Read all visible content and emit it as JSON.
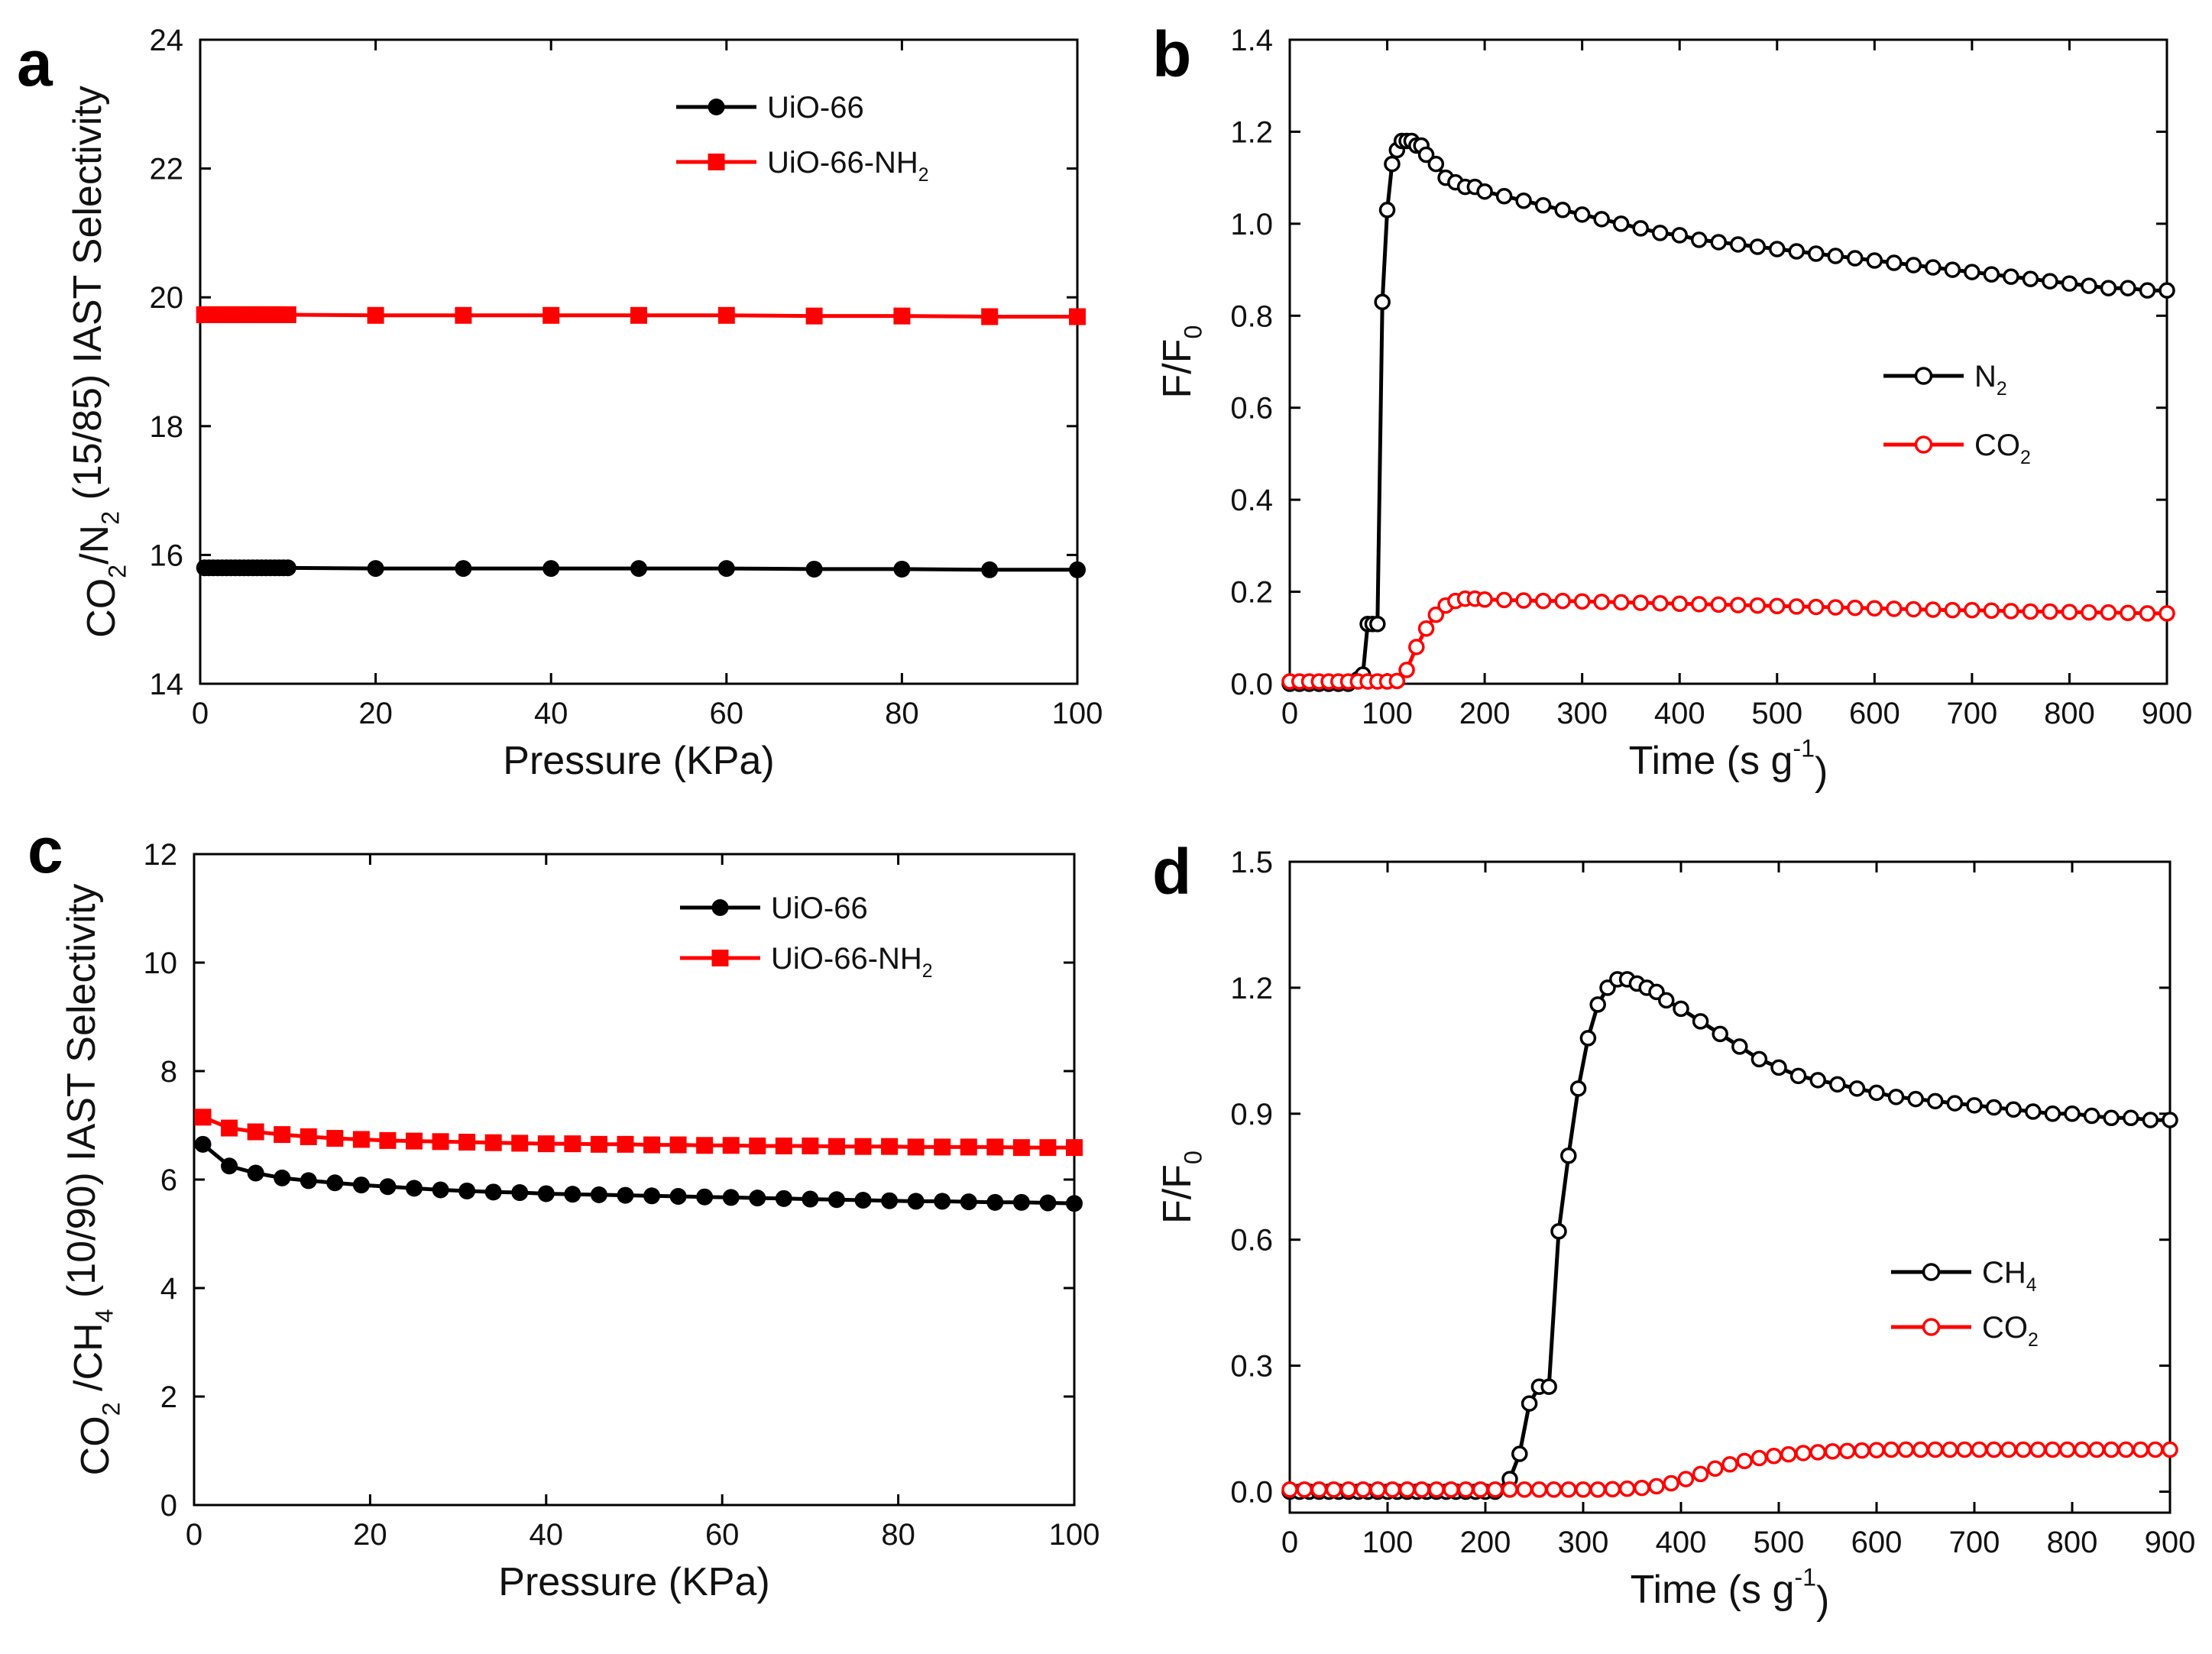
{
  "figure": {
    "panels": [
      "a",
      "b",
      "c",
      "d"
    ]
  },
  "chart_data": [
    {
      "panel": "a",
      "type": "line",
      "xlabel": "Pressure (KPa)",
      "ylabel": "CO2/N2 (15/85) IAST Selectivity",
      "ylabel_parts": [
        "CO",
        "2",
        "/N",
        "2",
        " (15/85) IAST Selectivity"
      ],
      "xlim": [
        0,
        100
      ],
      "ylim": [
        14,
        24
      ],
      "xticks": [
        0,
        20,
        40,
        60,
        80,
        100
      ],
      "yticks": [
        14,
        16,
        18,
        20,
        22,
        24
      ],
      "legend_position": "top-right",
      "series": [
        {
          "name": "UiO-66",
          "label_parts": [
            "UiO-66"
          ],
          "color": "#000000",
          "marker": "circle-filled",
          "x": [
            0.5,
            1,
            1.5,
            2,
            2.5,
            3,
            3.5,
            4,
            4.5,
            5,
            5.5,
            6,
            6.5,
            7,
            7.5,
            8,
            8.5,
            9,
            9.5,
            10,
            20,
            30,
            40,
            50,
            60,
            70,
            80,
            90,
            100
          ],
          "y": [
            15.8,
            15.8,
            15.8,
            15.8,
            15.8,
            15.8,
            15.8,
            15.8,
            15.8,
            15.8,
            15.8,
            15.8,
            15.8,
            15.8,
            15.8,
            15.8,
            15.8,
            15.8,
            15.8,
            15.8,
            15.79,
            15.79,
            15.79,
            15.79,
            15.79,
            15.78,
            15.78,
            15.77,
            15.77
          ]
        },
        {
          "name": "UiO-66-NH2",
          "label_parts": [
            "UiO-66-NH",
            "2"
          ],
          "color": "#ff0000",
          "marker": "square-filled",
          "x": [
            0.5,
            1,
            1.5,
            2,
            2.5,
            3,
            3.5,
            4,
            4.5,
            5,
            5.5,
            6,
            6.5,
            7,
            7.5,
            8,
            8.5,
            9,
            9.5,
            10,
            20,
            30,
            40,
            50,
            60,
            70,
            80,
            90,
            100
          ],
          "y": [
            19.73,
            19.73,
            19.73,
            19.73,
            19.73,
            19.73,
            19.73,
            19.73,
            19.73,
            19.73,
            19.73,
            19.73,
            19.73,
            19.73,
            19.73,
            19.73,
            19.73,
            19.73,
            19.73,
            19.73,
            19.72,
            19.72,
            19.72,
            19.72,
            19.72,
            19.71,
            19.71,
            19.7,
            19.7
          ]
        }
      ]
    },
    {
      "panel": "b",
      "type": "line",
      "xlabel": "Time (s g-1)",
      "xlabel_parts": [
        "Time (s g",
        "-1",
        ")"
      ],
      "ylabel": "F/F0",
      "ylabel_parts": [
        "F/F",
        "0"
      ],
      "xlim": [
        0,
        900
      ],
      "ylim": [
        0.0,
        1.4
      ],
      "xticks": [
        0,
        100,
        200,
        300,
        400,
        500,
        600,
        700,
        800,
        900
      ],
      "yticks": [
        0.0,
        0.2,
        0.4,
        0.6,
        0.8,
        1.0,
        1.2,
        1.4
      ],
      "legend_position": "center-right",
      "series": [
        {
          "name": "N2",
          "label_parts": [
            "N",
            "2"
          ],
          "color": "#000000",
          "marker": "circle-open",
          "x": [
            0,
            10,
            20,
            30,
            40,
            50,
            60,
            70,
            75,
            80,
            85,
            90,
            95,
            100,
            105,
            110,
            115,
            120,
            125,
            130,
            135,
            140,
            150,
            160,
            170,
            180,
            190,
            200,
            220,
            240,
            260,
            280,
            300,
            320,
            340,
            360,
            380,
            400,
            420,
            440,
            460,
            480,
            500,
            520,
            540,
            560,
            580,
            600,
            620,
            640,
            660,
            680,
            700,
            720,
            740,
            760,
            780,
            800,
            820,
            840,
            860,
            880,
            900
          ],
          "y": [
            0,
            0,
            0,
            0,
            0,
            0,
            0,
            0.01,
            0.02,
            0.13,
            0.13,
            0.13,
            0.83,
            1.03,
            1.13,
            1.16,
            1.18,
            1.18,
            1.18,
            1.17,
            1.17,
            1.15,
            1.13,
            1.1,
            1.09,
            1.08,
            1.08,
            1.07,
            1.06,
            1.05,
            1.04,
            1.03,
            1.02,
            1.01,
            1.0,
            0.99,
            0.98,
            0.975,
            0.965,
            0.96,
            0.955,
            0.95,
            0.945,
            0.94,
            0.935,
            0.93,
            0.925,
            0.92,
            0.915,
            0.91,
            0.905,
            0.9,
            0.895,
            0.89,
            0.885,
            0.88,
            0.875,
            0.87,
            0.865,
            0.86,
            0.86,
            0.855,
            0.855
          ]
        },
        {
          "name": "CO2",
          "label_parts": [
            "CO",
            "2"
          ],
          "color": "#ff0000",
          "marker": "circle-open",
          "x": [
            0,
            10,
            20,
            30,
            40,
            50,
            60,
            70,
            80,
            90,
            100,
            110,
            120,
            130,
            140,
            150,
            160,
            170,
            180,
            190,
            200,
            220,
            240,
            260,
            280,
            300,
            320,
            340,
            360,
            380,
            400,
            420,
            440,
            460,
            480,
            500,
            520,
            540,
            560,
            580,
            600,
            620,
            640,
            660,
            680,
            700,
            720,
            740,
            760,
            780,
            800,
            820,
            840,
            860,
            880,
            900
          ],
          "y": [
            0.005,
            0.005,
            0.005,
            0.005,
            0.005,
            0.005,
            0.005,
            0.005,
            0.005,
            0.005,
            0.005,
            0.006,
            0.03,
            0.08,
            0.12,
            0.15,
            0.17,
            0.18,
            0.185,
            0.185,
            0.183,
            0.182,
            0.181,
            0.18,
            0.18,
            0.179,
            0.178,
            0.177,
            0.176,
            0.175,
            0.174,
            0.173,
            0.172,
            0.171,
            0.17,
            0.169,
            0.168,
            0.167,
            0.166,
            0.165,
            0.164,
            0.163,
            0.162,
            0.161,
            0.16,
            0.16,
            0.159,
            0.158,
            0.157,
            0.157,
            0.156,
            0.155,
            0.155,
            0.154,
            0.153,
            0.153
          ]
        }
      ]
    },
    {
      "panel": "c",
      "type": "line",
      "xlabel": "Pressure (KPa)",
      "ylabel": "CO2 /CH4 (10/90) IAST Selectivity",
      "ylabel_parts": [
        "CO",
        "2",
        " /CH",
        "4",
        " (10/90) IAST Selectivity"
      ],
      "xlim": [
        0,
        100
      ],
      "ylim": [
        0,
        12
      ],
      "xticks": [
        0,
        20,
        40,
        60,
        80,
        100
      ],
      "yticks": [
        0,
        2,
        4,
        6,
        8,
        10,
        12
      ],
      "legend_position": "top-right",
      "series": [
        {
          "name": "UiO-66",
          "label_parts": [
            "UiO-66"
          ],
          "color": "#000000",
          "marker": "circle-filled",
          "x": [
            1,
            4,
            7,
            10,
            13,
            16,
            19,
            22,
            25,
            28,
            31,
            34,
            37,
            40,
            43,
            46,
            49,
            52,
            55,
            58,
            61,
            64,
            67,
            70,
            73,
            76,
            79,
            82,
            85,
            88,
            91,
            94,
            97,
            100
          ],
          "y": [
            6.65,
            6.25,
            6.12,
            6.03,
            5.98,
            5.94,
            5.9,
            5.87,
            5.84,
            5.81,
            5.79,
            5.77,
            5.76,
            5.74,
            5.73,
            5.72,
            5.71,
            5.7,
            5.69,
            5.68,
            5.67,
            5.66,
            5.65,
            5.64,
            5.63,
            5.62,
            5.61,
            5.6,
            5.6,
            5.59,
            5.58,
            5.58,
            5.57,
            5.56
          ]
        },
        {
          "name": "UiO-66-NH2",
          "label_parts": [
            "UiO-66-NH",
            "2"
          ],
          "color": "#ff0000",
          "marker": "square-filled",
          "x": [
            1,
            4,
            7,
            10,
            13,
            16,
            19,
            22,
            25,
            28,
            31,
            34,
            37,
            40,
            43,
            46,
            49,
            52,
            55,
            58,
            61,
            64,
            67,
            70,
            73,
            76,
            79,
            82,
            85,
            88,
            91,
            94,
            97,
            100
          ],
          "y": [
            7.15,
            6.95,
            6.88,
            6.83,
            6.79,
            6.76,
            6.74,
            6.72,
            6.71,
            6.7,
            6.69,
            6.68,
            6.67,
            6.66,
            6.66,
            6.65,
            6.65,
            6.64,
            6.64,
            6.63,
            6.63,
            6.62,
            6.62,
            6.62,
            6.61,
            6.61,
            6.61,
            6.6,
            6.6,
            6.6,
            6.6,
            6.59,
            6.59,
            6.59
          ]
        }
      ]
    },
    {
      "panel": "d",
      "type": "line",
      "xlabel": "Time (s g-1)",
      "xlabel_parts": [
        "Time (s g",
        "-1",
        ")"
      ],
      "ylabel": "F/F0",
      "ylabel_parts": [
        "F/F",
        "0"
      ],
      "xlim": [
        0,
        900
      ],
      "ylim": [
        -0.05,
        1.5
      ],
      "xticks": [
        0,
        100,
        200,
        300,
        400,
        500,
        600,
        700,
        800,
        900
      ],
      "yticks": [
        0.0,
        0.3,
        0.6,
        0.9,
        1.2,
        1.5
      ],
      "legend_position": "bottom-right",
      "series": [
        {
          "name": "CH4",
          "label_parts": [
            "CH",
            "4"
          ],
          "color": "#000000",
          "marker": "circle-open",
          "x": [
            0,
            10,
            20,
            30,
            40,
            50,
            60,
            70,
            80,
            90,
            100,
            110,
            120,
            130,
            140,
            150,
            160,
            170,
            180,
            190,
            200,
            210,
            225,
            235,
            245,
            255,
            265,
            275,
            285,
            295,
            305,
            315,
            325,
            335,
            345,
            355,
            365,
            375,
            385,
            400,
            420,
            440,
            460,
            480,
            500,
            520,
            540,
            560,
            580,
            600,
            620,
            640,
            660,
            680,
            700,
            720,
            740,
            760,
            780,
            800,
            820,
            840,
            860,
            880,
            900
          ],
          "y": [
            0,
            0,
            0,
            0,
            0,
            0,
            0,
            0,
            0,
            0,
            0,
            0,
            0,
            0,
            0,
            0,
            0,
            0,
            0,
            0,
            0,
            0,
            0.03,
            0.09,
            0.21,
            0.25,
            0.25,
            0.62,
            0.8,
            0.96,
            1.08,
            1.16,
            1.2,
            1.22,
            1.22,
            1.21,
            1.2,
            1.19,
            1.17,
            1.15,
            1.12,
            1.09,
            1.06,
            1.03,
            1.01,
            0.99,
            0.98,
            0.97,
            0.96,
            0.95,
            0.94,
            0.935,
            0.93,
            0.925,
            0.92,
            0.915,
            0.91,
            0.905,
            0.9,
            0.9,
            0.895,
            0.89,
            0.89,
            0.885,
            0.885
          ]
        },
        {
          "name": "CO2",
          "label_parts": [
            "CO",
            "2"
          ],
          "color": "#ff0000",
          "marker": "circle-open",
          "x": [
            0,
            15,
            30,
            45,
            60,
            75,
            90,
            105,
            120,
            135,
            150,
            165,
            180,
            195,
            210,
            225,
            240,
            255,
            270,
            285,
            300,
            315,
            330,
            345,
            360,
            375,
            390,
            405,
            420,
            435,
            450,
            465,
            480,
            495,
            510,
            525,
            540,
            555,
            570,
            585,
            600,
            615,
            630,
            645,
            660,
            675,
            690,
            705,
            720,
            735,
            750,
            765,
            780,
            795,
            810,
            825,
            840,
            855,
            870,
            885,
            900
          ],
          "y": [
            0.005,
            0.005,
            0.005,
            0.005,
            0.005,
            0.005,
            0.005,
            0.005,
            0.005,
            0.005,
            0.005,
            0.005,
            0.005,
            0.005,
            0.005,
            0.005,
            0.005,
            0.005,
            0.005,
            0.005,
            0.005,
            0.005,
            0.006,
            0.007,
            0.009,
            0.013,
            0.02,
            0.03,
            0.042,
            0.055,
            0.065,
            0.073,
            0.08,
            0.085,
            0.089,
            0.092,
            0.094,
            0.096,
            0.097,
            0.098,
            0.099,
            0.1,
            0.1,
            0.1,
            0.1,
            0.1,
            0.1,
            0.1,
            0.1,
            0.1,
            0.1,
            0.1,
            0.1,
            0.1,
            0.1,
            0.1,
            0.1,
            0.1,
            0.1,
            0.1,
            0.1
          ]
        }
      ]
    }
  ]
}
